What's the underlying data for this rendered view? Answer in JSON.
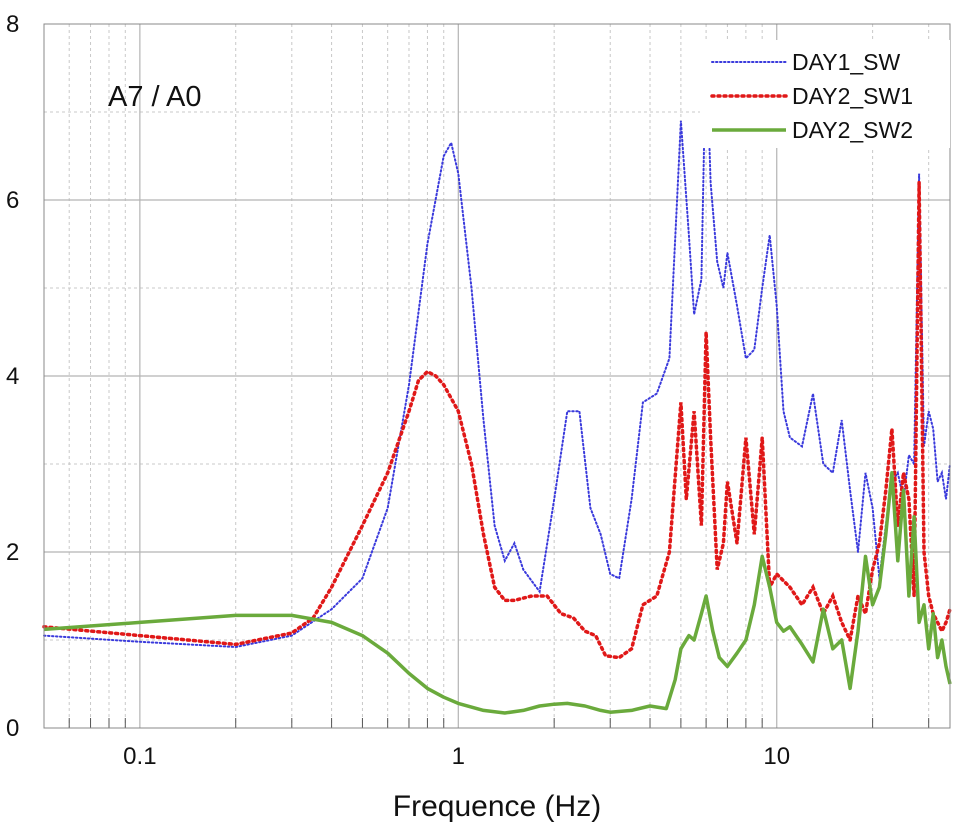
{
  "chart_data": {
    "type": "line",
    "title": "",
    "annotation": "A7 / A0",
    "xlabel": "Frequence (Hz)",
    "ylabel": "",
    "xscale": "log",
    "xlim": [
      0.05,
      35
    ],
    "ylim": [
      0,
      8
    ],
    "xticks": [
      {
        "value": 0.1,
        "label": "0.1"
      },
      {
        "value": 1,
        "label": "1"
      },
      {
        "value": 10,
        "label": "10"
      }
    ],
    "yticks": [
      {
        "value": 0,
        "label": "0"
      },
      {
        "value": 2,
        "label": "2"
      },
      {
        "value": 4,
        "label": "4"
      },
      {
        "value": 6,
        "label": "6"
      },
      {
        "value": 8,
        "label": "8"
      }
    ],
    "grid": true,
    "legend_position": "top-right",
    "series": [
      {
        "name": "DAY1_SW",
        "color": "#3a3adc",
        "style": "dotted",
        "x": [
          0.05,
          0.1,
          0.2,
          0.3,
          0.4,
          0.5,
          0.6,
          0.7,
          0.8,
          0.9,
          0.95,
          1.0,
          1.1,
          1.2,
          1.3,
          1.4,
          1.5,
          1.6,
          1.8,
          2.0,
          2.2,
          2.4,
          2.6,
          2.8,
          3.0,
          3.2,
          3.5,
          3.8,
          4.2,
          4.6,
          5.0,
          5.3,
          5.5,
          5.8,
          6.0,
          6.2,
          6.5,
          6.8,
          7.0,
          7.5,
          8.0,
          8.5,
          9.0,
          9.5,
          10.0,
          10.5,
          11.0,
          12.0,
          13.0,
          14.0,
          15.0,
          16.0,
          17.0,
          18.0,
          19.0,
          20.0,
          21.0,
          22.0,
          23.0,
          24.0,
          25.0,
          26.0,
          27.0,
          28.0,
          29.0,
          30.0,
          31.0,
          32.0,
          33.0,
          34.0,
          35.0
        ],
        "y": [
          1.05,
          0.98,
          0.92,
          1.05,
          1.35,
          1.7,
          2.5,
          3.9,
          5.5,
          6.5,
          6.65,
          6.3,
          5.0,
          3.5,
          2.3,
          1.9,
          2.1,
          1.8,
          1.55,
          2.6,
          3.6,
          3.6,
          2.5,
          2.2,
          1.75,
          1.7,
          2.6,
          3.7,
          3.8,
          4.2,
          6.9,
          5.6,
          4.7,
          5.1,
          7.8,
          6.2,
          5.3,
          5.0,
          5.4,
          4.8,
          4.2,
          4.3,
          5.0,
          5.6,
          4.8,
          3.6,
          3.3,
          3.2,
          3.8,
          3.0,
          2.9,
          3.5,
          2.7,
          2.0,
          2.9,
          2.5,
          1.7,
          2.3,
          2.8,
          2.9,
          2.6,
          3.1,
          3.0,
          6.3,
          3.2,
          3.6,
          3.4,
          2.8,
          2.9,
          2.6,
          3.0
        ]
      },
      {
        "name": "DAY2_SW1",
        "color": "#e01818",
        "style": "dotted",
        "x": [
          0.05,
          0.1,
          0.2,
          0.3,
          0.35,
          0.4,
          0.5,
          0.6,
          0.7,
          0.75,
          0.8,
          0.85,
          0.9,
          1.0,
          1.1,
          1.2,
          1.3,
          1.4,
          1.5,
          1.7,
          1.9,
          2.1,
          2.3,
          2.5,
          2.7,
          2.9,
          3.2,
          3.5,
          3.8,
          4.2,
          4.6,
          5.0,
          5.2,
          5.5,
          5.8,
          6.0,
          6.2,
          6.5,
          6.8,
          7.0,
          7.5,
          8.0,
          8.5,
          9.0,
          9.5,
          10.0,
          11.0,
          12.0,
          13.0,
          14.0,
          15.0,
          16.0,
          17.0,
          18.0,
          19.0,
          20.0,
          21.0,
          22.0,
          23.0,
          24.0,
          25.0,
          26.0,
          27.0,
          28.0,
          29.0,
          30.0,
          31.0,
          32.0,
          33.0,
          34.0,
          35.0
        ],
        "y": [
          1.15,
          1.05,
          0.95,
          1.08,
          1.25,
          1.6,
          2.3,
          2.9,
          3.6,
          3.95,
          4.05,
          4.0,
          3.9,
          3.6,
          3.0,
          2.2,
          1.6,
          1.45,
          1.45,
          1.5,
          1.5,
          1.3,
          1.25,
          1.1,
          1.05,
          0.82,
          0.8,
          0.9,
          1.4,
          1.5,
          2.0,
          3.7,
          2.6,
          3.6,
          2.3,
          4.5,
          3.3,
          1.8,
          2.1,
          2.8,
          2.1,
          3.3,
          2.2,
          3.3,
          1.6,
          1.75,
          1.6,
          1.4,
          1.6,
          1.3,
          1.5,
          1.2,
          1.0,
          1.5,
          1.3,
          1.8,
          2.1,
          2.7,
          3.4,
          2.3,
          2.9,
          2.6,
          1.5,
          6.2,
          2.0,
          1.5,
          1.3,
          1.2,
          1.1,
          1.2,
          1.35
        ]
      },
      {
        "name": "DAY2_SW2",
        "color": "#6aaa3c",
        "style": "solid",
        "x": [
          0.05,
          0.1,
          0.2,
          0.3,
          0.4,
          0.5,
          0.6,
          0.7,
          0.8,
          0.9,
          1.0,
          1.2,
          1.4,
          1.6,
          1.8,
          2.0,
          2.2,
          2.5,
          2.8,
          3.0,
          3.5,
          4.0,
          4.5,
          4.8,
          5.0,
          5.3,
          5.5,
          5.8,
          6.0,
          6.3,
          6.6,
          7.0,
          7.5,
          8.0,
          8.5,
          9.0,
          9.5,
          10.0,
          10.5,
          11.0,
          12.0,
          13.0,
          14.0,
          15.0,
          16.0,
          17.0,
          18.0,
          19.0,
          20.0,
          21.0,
          22.0,
          23.0,
          24.0,
          25.0,
          26.0,
          27.0,
          28.0,
          29.0,
          30.0,
          31.0,
          32.0,
          33.0,
          34.0,
          35.0
        ],
        "y": [
          1.12,
          1.2,
          1.28,
          1.28,
          1.2,
          1.05,
          0.85,
          0.62,
          0.45,
          0.35,
          0.28,
          0.2,
          0.17,
          0.2,
          0.25,
          0.27,
          0.28,
          0.25,
          0.2,
          0.18,
          0.2,
          0.25,
          0.22,
          0.55,
          0.9,
          1.05,
          1.0,
          1.3,
          1.5,
          1.1,
          0.8,
          0.7,
          0.85,
          1.0,
          1.4,
          1.95,
          1.6,
          1.2,
          1.1,
          1.15,
          0.95,
          0.75,
          1.35,
          0.9,
          1.0,
          0.45,
          1.1,
          1.95,
          1.4,
          1.6,
          2.2,
          2.9,
          1.9,
          2.7,
          1.5,
          2.4,
          1.2,
          1.4,
          0.9,
          1.3,
          0.8,
          1.0,
          0.7,
          0.5
        ]
      }
    ]
  }
}
